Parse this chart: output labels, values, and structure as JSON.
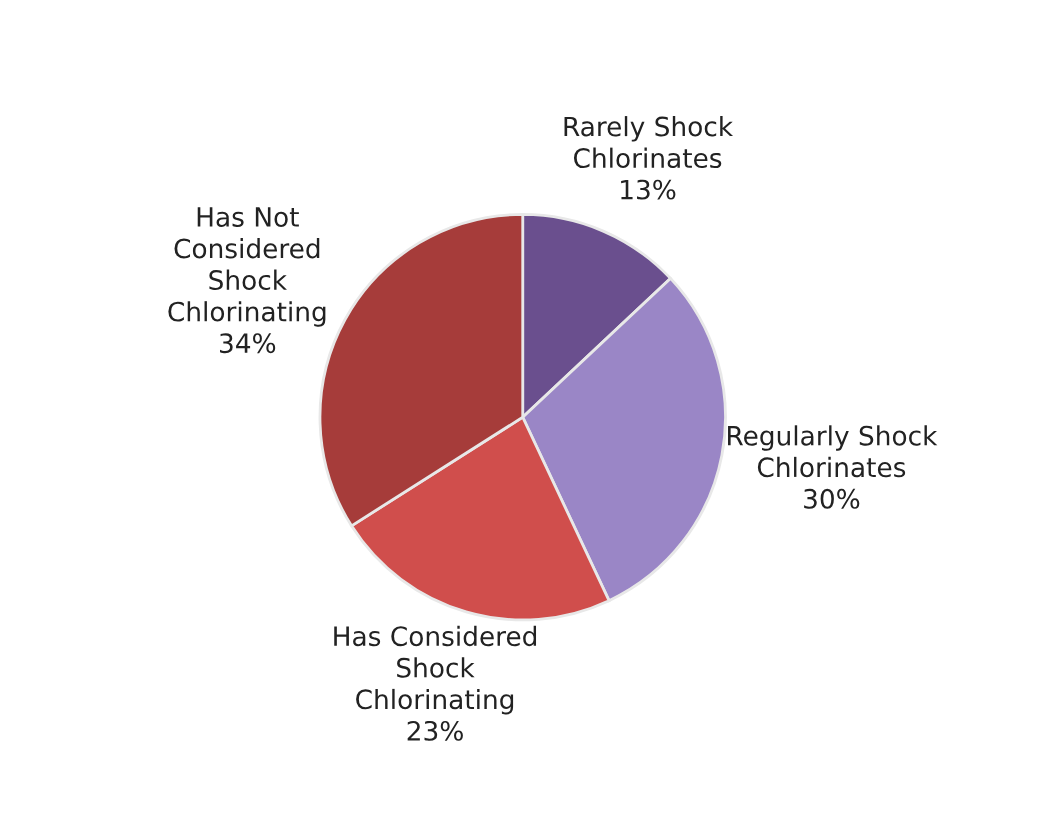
{
  "chart_data": {
    "type": "pie",
    "categories": [
      "Rarely Shock Chlorinates",
      "Regularly Shock Chlorinates",
      "Has Considered Shock Chlorinating",
      "Has Not Considered Shock Chlorinating"
    ],
    "values": [
      13,
      30,
      23,
      34
    ],
    "colors": [
      "#6a4f8e",
      "#9a86c6",
      "#d04e4c",
      "#a63c3a"
    ],
    "value_labels": [
      "13%",
      "30%",
      "23%",
      "34%"
    ]
  }
}
